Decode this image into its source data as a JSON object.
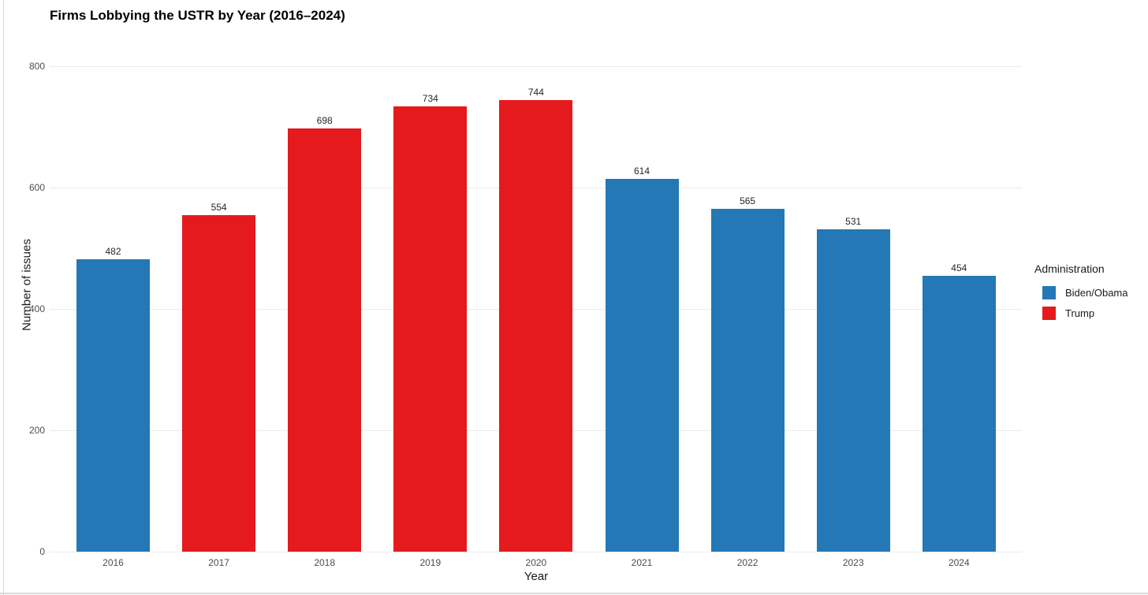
{
  "chart_data": {
    "type": "bar",
    "title": "Firms Lobbying the USTR by Year (2016–2024)",
    "xlabel": "Year",
    "ylabel": "Number of issues",
    "categories": [
      "2016",
      "2017",
      "2018",
      "2019",
      "2020",
      "2021",
      "2022",
      "2023",
      "2024"
    ],
    "values": [
      482,
      554,
      698,
      734,
      744,
      614,
      565,
      531,
      454
    ],
    "bar_series": [
      "Biden/Obama",
      "Trump",
      "Trump",
      "Trump",
      "Trump",
      "Biden/Obama",
      "Biden/Obama",
      "Biden/Obama",
      "Biden/Obama"
    ],
    "bar_labels_visible": true,
    "ylim": [
      0,
      800
    ],
    "yticks": [
      0,
      200,
      400,
      600,
      800
    ],
    "grid": "horizontal-major-only",
    "colors": {
      "Biden/Obama": "#2478b5",
      "Trump": "#e41a1c",
      "gridline": "#ebebeb",
      "tick_text": "#4d4d4d",
      "label_text": "#262626"
    },
    "legend": {
      "title": "Administration",
      "position": "right",
      "entries": [
        {
          "label": "Biden/Obama",
          "color": "#2478b5"
        },
        {
          "label": "Trump",
          "color": "#e41a1c"
        }
      ]
    }
  }
}
